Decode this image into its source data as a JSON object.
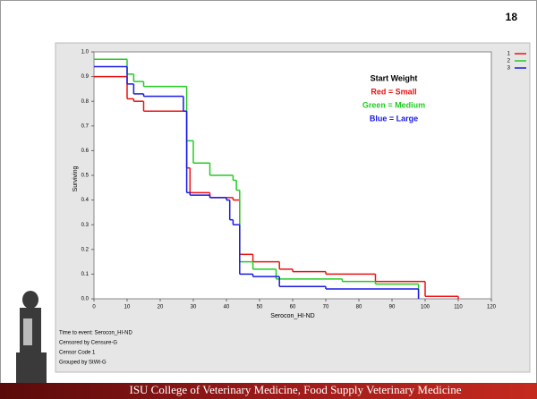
{
  "slide": {
    "number": "18",
    "footer": "ISU College of Veterinary Medicine,  Food Supply Veterinary Medicine"
  },
  "chart_data": {
    "type": "step",
    "xlabel": "Serocon_HI-ND",
    "ylabel": "Surviving",
    "xlim": [
      0,
      120
    ],
    "ylim": [
      0,
      1
    ],
    "xticks": [
      0,
      10,
      20,
      30,
      40,
      50,
      60,
      70,
      80,
      90,
      100,
      110,
      120
    ],
    "yticks": [
      {
        "value": 0,
        "label": "0.0"
      },
      0.1,
      0.2,
      0.3,
      0.4,
      0.5,
      0.6,
      0.7,
      0.8,
      0.9,
      {
        "value": 1,
        "label": "1.0"
      }
    ],
    "legend": "top-right",
    "annotation": [
      {
        "text": "Start Weight",
        "color": "#000000"
      },
      {
        "text": "Red = Small",
        "color": "#ee1111"
      },
      {
        "text": "Green = Medium",
        "color": "#22cc22"
      },
      {
        "text": "Blue = Large",
        "color": "#1a1ae6"
      }
    ],
    "notes": [
      "Time to event: Serocon_HI-ND",
      "Censored by Censure-G",
      "Censor Code 1",
      "Grouped by StWt-G"
    ],
    "series": [
      {
        "name": "1",
        "color": "#ee1111",
        "x": [
          0,
          10,
          12,
          15,
          28,
          29,
          35,
          42,
          44,
          48,
          56,
          60,
          70,
          85,
          100,
          110
        ],
        "values": [
          0.9,
          0.81,
          0.8,
          0.76,
          0.53,
          0.43,
          0.41,
          0.4,
          0.18,
          0.15,
          0.12,
          0.11,
          0.1,
          0.07,
          0.01,
          0
        ]
      },
      {
        "name": "2",
        "color": "#22cc22",
        "x": [
          0,
          10,
          12,
          15,
          28,
          30,
          35,
          42,
          43,
          44,
          48,
          55,
          75,
          85,
          98
        ],
        "values": [
          0.97,
          0.91,
          0.88,
          0.86,
          0.64,
          0.55,
          0.5,
          0.48,
          0.44,
          0.15,
          0.12,
          0.08,
          0.07,
          0.06,
          0
        ]
      },
      {
        "name": "3",
        "color": "#1a1ae6",
        "x": [
          0,
          10,
          12,
          15,
          27,
          28,
          29,
          35,
          40,
          41,
          42,
          44,
          48,
          56,
          70,
          98
        ],
        "values": [
          0.94,
          0.87,
          0.83,
          0.82,
          0.76,
          0.43,
          0.42,
          0.41,
          0.4,
          0.32,
          0.3,
          0.1,
          0.09,
          0.05,
          0.04,
          0
        ]
      }
    ]
  }
}
